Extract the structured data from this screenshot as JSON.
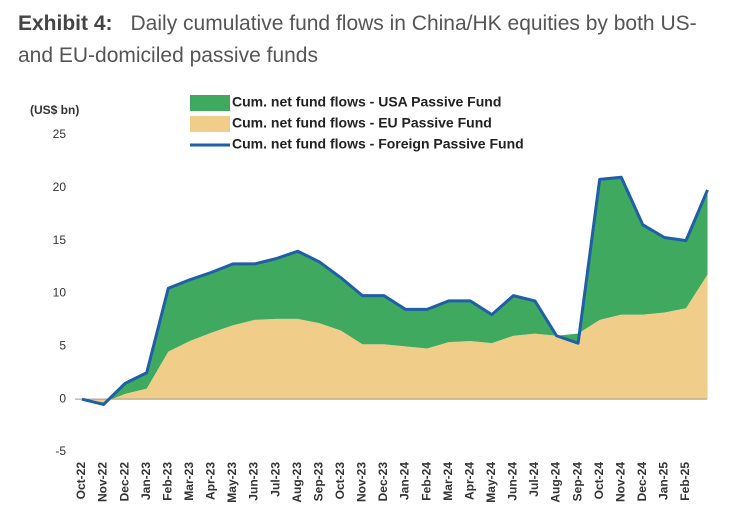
{
  "chart_data": {
    "type": "area",
    "stacked": true,
    "label": "Exhibit 4:",
    "title": "Daily cumulative fund flows in China/HK equities by both US- and EU-domiciled passive funds",
    "y_axis_label": "(US$ bn)",
    "categories": [
      "Oct-22",
      "Nov-22",
      "Dec-22",
      "Jan-23",
      "Feb-23",
      "Mar-23",
      "Apr-23",
      "May-23",
      "Jun-23",
      "Jul-23",
      "Aug-23",
      "Sep-23",
      "Oct-23",
      "Nov-23",
      "Dec-23",
      "Jan-24",
      "Feb-24",
      "Mar-24",
      "Apr-24",
      "May-24",
      "Jun-24",
      "Jul-24",
      "Aug-24",
      "Sep-24",
      "Oct-24",
      "Nov-24",
      "Dec-24",
      "Jan-25",
      "Feb-25",
      null
    ],
    "series": [
      {
        "name": "Cum. net fund flows  - USA Passive Fund",
        "type": "area",
        "color": "#3ea95f",
        "values": [
          0,
          -0.2,
          1.0,
          1.5,
          6.0,
          5.8,
          5.7,
          5.8,
          5.3,
          5.7,
          6.4,
          5.8,
          5.0,
          4.6,
          4.6,
          3.5,
          3.7,
          3.9,
          3.8,
          2.7,
          3.8,
          3.1,
          0,
          -0.9,
          13.3,
          13.0,
          8.5,
          7.1,
          6.4,
          8.0
        ]
      },
      {
        "name": "Cum. net fund flows  - EU Passive Fund",
        "type": "area",
        "color": "#f0cd88",
        "values": [
          0,
          -0.3,
          0.5,
          1.0,
          4.5,
          5.5,
          6.3,
          7.0,
          7.5,
          7.6,
          7.6,
          7.2,
          6.5,
          5.2,
          5.2,
          5.0,
          4.8,
          5.4,
          5.5,
          5.3,
          6.0,
          6.2,
          6.0,
          6.2,
          7.5,
          8.0,
          8.0,
          8.2,
          8.6,
          11.8
        ]
      },
      {
        "name": "Cum. net fund flows  - Foreign Passive Fund",
        "type": "line",
        "color": "#1f5fa8",
        "values": [
          0,
          -0.5,
          1.5,
          2.5,
          10.5,
          11.3,
          12.0,
          12.8,
          12.8,
          13.3,
          14.0,
          13.0,
          11.5,
          9.8,
          9.8,
          8.5,
          8.5,
          9.3,
          9.3,
          8.0,
          9.8,
          9.3,
          6.0,
          5.3,
          20.8,
          21.0,
          16.5,
          15.3,
          15.0,
          19.8
        ]
      }
    ],
    "ylim": [
      -5,
      25
    ],
    "yticks": [
      -5,
      0,
      5,
      10,
      15,
      20,
      25
    ],
    "grid": false
  }
}
